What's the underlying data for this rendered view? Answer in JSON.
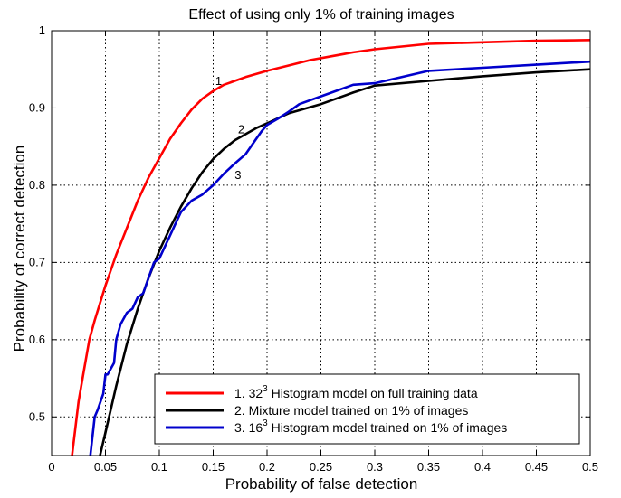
{
  "chart_data": {
    "type": "line",
    "title": "Effect of using only 1% of training images",
    "xlabel": "Probability of false detection",
    "ylabel": "Probability of correct detection",
    "xlim": [
      0,
      0.5
    ],
    "ylim": [
      0.45,
      1.0
    ],
    "grid": true,
    "x_ticks": [
      0,
      0.05,
      0.1,
      0.15,
      0.2,
      0.25,
      0.3,
      0.35,
      0.4,
      0.45,
      0.5
    ],
    "x_tick_labels": [
      "0",
      "0.05",
      "0.1",
      "0.15",
      "0.2",
      "0.25",
      "0.3",
      "0.35",
      "0.4",
      "0.45",
      "0.5"
    ],
    "y_ticks": [
      0.5,
      0.6,
      0.7,
      0.8,
      0.9,
      1.0
    ],
    "y_tick_labels": [
      "0.5",
      "0.6",
      "0.7",
      "0.8",
      "0.9",
      "1"
    ],
    "legend_position": "bottom-right",
    "series": [
      {
        "name": "1. 32³ Histogram model on full training data",
        "legend_prefix": "1. 32",
        "legend_sup": "3",
        "legend_suffix": " Histogram model on full training data",
        "curve_label": "1",
        "curve_label_at": [
          0.152,
          0.93
        ],
        "color": "#ff0000",
        "x": [
          0.019,
          0.025,
          0.03,
          0.035,
          0.04,
          0.05,
          0.06,
          0.07,
          0.08,
          0.09,
          0.1,
          0.11,
          0.12,
          0.13,
          0.14,
          0.15,
          0.16,
          0.18,
          0.2,
          0.22,
          0.24,
          0.26,
          0.28,
          0.3,
          0.35,
          0.4,
          0.45,
          0.5
        ],
        "y": [
          0.45,
          0.52,
          0.56,
          0.6,
          0.625,
          0.67,
          0.71,
          0.745,
          0.78,
          0.81,
          0.835,
          0.86,
          0.88,
          0.898,
          0.912,
          0.922,
          0.93,
          0.94,
          0.948,
          0.955,
          0.962,
          0.967,
          0.972,
          0.976,
          0.983,
          0.985,
          0.987,
          0.988
        ]
      },
      {
        "name": "2. Mixture model trained on 1% of images",
        "legend_prefix": "2. Mixture model trained on 1% of images",
        "legend_sup": "",
        "legend_suffix": "",
        "curve_label": "2",
        "curve_label_at": [
          0.173,
          0.867
        ],
        "color": "#000000",
        "x": [
          0.045,
          0.05,
          0.06,
          0.07,
          0.08,
          0.09,
          0.1,
          0.11,
          0.12,
          0.13,
          0.14,
          0.15,
          0.16,
          0.17,
          0.18,
          0.19,
          0.2,
          0.22,
          0.25,
          0.28,
          0.3,
          0.35,
          0.4,
          0.45,
          0.5
        ],
        "y": [
          0.45,
          0.48,
          0.54,
          0.595,
          0.64,
          0.68,
          0.715,
          0.745,
          0.772,
          0.796,
          0.817,
          0.834,
          0.847,
          0.858,
          0.866,
          0.874,
          0.88,
          0.893,
          0.905,
          0.92,
          0.929,
          0.935,
          0.941,
          0.946,
          0.95
        ]
      },
      {
        "name": "3. 16³ Histogram model trained on 1% of images",
        "legend_prefix": "3. 16",
        "legend_sup": "3",
        "legend_suffix": " Histogram model trained on 1% of images",
        "curve_label": "3",
        "curve_label_at": [
          0.17,
          0.808
        ],
        "color": "#0000cc",
        "x": [
          0.036,
          0.04,
          0.043,
          0.048,
          0.05,
          0.052,
          0.058,
          0.06,
          0.064,
          0.07,
          0.075,
          0.08,
          0.085,
          0.09,
          0.095,
          0.1,
          0.105,
          0.11,
          0.115,
          0.12,
          0.13,
          0.14,
          0.15,
          0.16,
          0.17,
          0.18,
          0.19,
          0.195,
          0.2,
          0.21,
          0.22,
          0.23,
          0.25,
          0.28,
          0.3,
          0.35,
          0.4,
          0.45,
          0.5
        ],
        "y": [
          0.45,
          0.5,
          0.51,
          0.53,
          0.555,
          0.555,
          0.57,
          0.6,
          0.62,
          0.635,
          0.64,
          0.655,
          0.66,
          0.68,
          0.7,
          0.705,
          0.72,
          0.735,
          0.75,
          0.765,
          0.78,
          0.788,
          0.8,
          0.815,
          0.828,
          0.84,
          0.86,
          0.87,
          0.878,
          0.886,
          0.895,
          0.905,
          0.915,
          0.93,
          0.932,
          0.948,
          0.952,
          0.956,
          0.96
        ]
      }
    ]
  }
}
